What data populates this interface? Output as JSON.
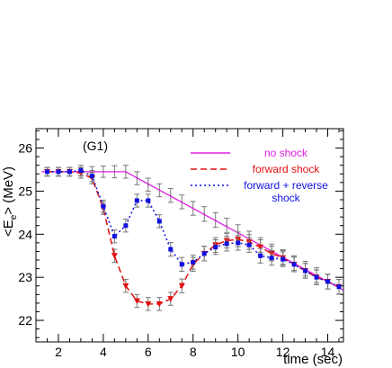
{
  "chart_data": {
    "type": "line",
    "panel_label": "(G1)",
    "xlabel": "time (sec)",
    "ylabel": "<E",
    "ylabel_sub": "e",
    "ylabel_rest": "> (MeV)",
    "xlim": [
      1.0,
      14.7
    ],
    "ylim": [
      21.5,
      26.45
    ],
    "x_ticks": [
      2,
      4,
      6,
      8,
      10,
      12,
      14
    ],
    "x_tick_labels": [
      "2",
      "4",
      "6",
      "8",
      "10",
      "12",
      "14"
    ],
    "y_ticks": [
      22,
      23,
      24,
      25,
      26
    ],
    "y_tick_labels": [
      "22",
      "23",
      "24",
      "25",
      "26"
    ],
    "legend": {
      "placement": "top-right",
      "entries": [
        {
          "lines": [
            "no shock"
          ],
          "color": "#e020e0",
          "style": "solid"
        },
        {
          "lines": [
            "forward shock"
          ],
          "color": "#e01010",
          "style": "dashed"
        },
        {
          "lines": [
            "forward + reverse",
            "shock"
          ],
          "color": "#1010e0",
          "style": "dotted"
        }
      ]
    },
    "series": [
      {
        "name": "no shock",
        "color": "#e020e0",
        "style": "solid",
        "marker": "none",
        "x": [
          1.25,
          5.0,
          14.7
        ],
        "y": [
          25.45,
          25.45,
          22.7
        ]
      },
      {
        "name": "forward shock",
        "color": "#e01010",
        "style": "dashed",
        "marker": "triangle-down",
        "x": [
          1.5,
          2.0,
          2.5,
          3.0,
          3.5,
          4.0,
          4.5,
          5.0,
          5.5,
          6.0,
          6.5,
          7.0,
          7.5,
          8.0,
          8.5,
          9.0,
          9.5,
          10.0,
          10.5,
          11.0,
          11.5,
          12.0,
          12.5,
          13.0,
          13.5,
          14.0,
          14.5
        ],
        "y": [
          25.45,
          25.45,
          25.45,
          25.42,
          25.3,
          24.6,
          23.5,
          22.8,
          22.45,
          22.38,
          22.38,
          22.5,
          22.8,
          23.3,
          23.55,
          23.75,
          23.85,
          23.88,
          23.82,
          23.7,
          23.55,
          23.45,
          23.3,
          23.15,
          23.0,
          22.9,
          22.78
        ],
        "errors": [
          0.1,
          0.1,
          0.1,
          0.12,
          0.13,
          0.14,
          0.15,
          0.15,
          0.15,
          0.15,
          0.15,
          0.15,
          0.16,
          0.16,
          0.17,
          0.17,
          0.17,
          0.17,
          0.17,
          0.17,
          0.17,
          0.17,
          0.17,
          0.17,
          0.17,
          0.17,
          0.17
        ]
      },
      {
        "name": "forward + reverse shock",
        "color": "#1010e0",
        "style": "dotted",
        "marker": "square",
        "x": [
          1.5,
          2.0,
          2.5,
          3.0,
          3.5,
          4.0,
          4.5,
          5.0,
          5.5,
          6.0,
          6.5,
          7.0,
          7.5,
          8.0,
          8.5,
          9.0,
          9.5,
          10.0,
          10.5,
          11.0,
          11.5,
          12.0,
          12.5,
          13.0,
          13.5,
          14.0,
          14.5
        ],
        "y": [
          25.45,
          25.45,
          25.45,
          25.48,
          25.35,
          24.65,
          23.95,
          24.2,
          24.78,
          24.78,
          24.3,
          23.65,
          23.3,
          23.35,
          23.55,
          23.7,
          23.78,
          23.8,
          23.75,
          23.5,
          23.45,
          23.42,
          23.3,
          23.15,
          23.0,
          22.9,
          22.78
        ],
        "errors": [
          0.1,
          0.1,
          0.1,
          0.12,
          0.13,
          0.14,
          0.15,
          0.15,
          0.15,
          0.15,
          0.15,
          0.16,
          0.16,
          0.16,
          0.17,
          0.17,
          0.17,
          0.17,
          0.17,
          0.17,
          0.17,
          0.17,
          0.17,
          0.17,
          0.17,
          0.17,
          0.17
        ]
      },
      {
        "name": "no shock (points)",
        "color": "#000000",
        "style": "none",
        "marker": "errorbar",
        "x": [
          1.5,
          2.0,
          2.5,
          3.0,
          3.5,
          4.0,
          4.5,
          5.0,
          5.5,
          6.0,
          6.5,
          7.0,
          7.5,
          8.0,
          8.5,
          9.0,
          9.5,
          10.0,
          10.5,
          11.0,
          11.5,
          12.0,
          12.5,
          13.0,
          13.5,
          14.0,
          14.5
        ],
        "y": [
          25.45,
          25.45,
          25.45,
          25.45,
          25.45,
          25.45,
          25.45,
          25.45,
          25.3,
          25.15,
          25.02,
          24.9,
          24.75,
          24.6,
          24.47,
          24.33,
          24.2,
          24.05,
          23.9,
          23.75,
          23.6,
          23.47,
          23.33,
          23.2,
          23.05,
          22.9,
          22.78
        ],
        "errors": [
          0.1,
          0.1,
          0.1,
          0.1,
          0.12,
          0.13,
          0.14,
          0.15,
          0.15,
          0.15,
          0.15,
          0.16,
          0.16,
          0.16,
          0.17,
          0.17,
          0.17,
          0.17,
          0.17,
          0.17,
          0.17,
          0.17,
          0.17,
          0.17,
          0.17,
          0.17,
          0.17
        ]
      }
    ]
  }
}
